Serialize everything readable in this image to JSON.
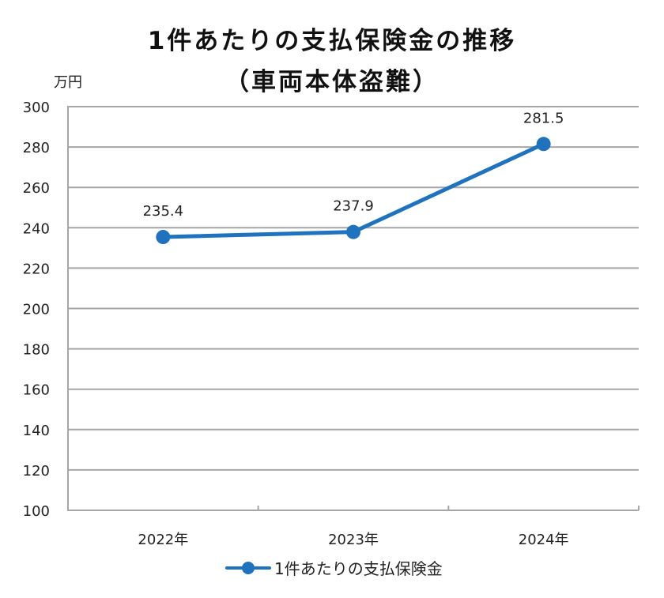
{
  "chart_data": {
    "type": "line",
    "title": "1件あたりの支払保険金の推移",
    "subtitle": "（車両本体盗難）",
    "xlabel": "",
    "ylabel": "万円",
    "categories": [
      "2022年",
      "2023年",
      "2024年"
    ],
    "series": [
      {
        "name": "1件あたりの支払保険金",
        "values": [
          235.4,
          237.9,
          281.5
        ],
        "color": "#1f72bd"
      }
    ],
    "data_labels": [
      "235.4",
      "237.9",
      "281.5"
    ],
    "ylim": [
      100,
      300
    ],
    "yticks": [
      100,
      120,
      140,
      160,
      180,
      200,
      220,
      240,
      260,
      280,
      300
    ],
    "grid": true,
    "legend_position": "bottom"
  },
  "header": {
    "title_line1": "1件あたりの支払保険金の推移",
    "title_line2": "（車両本体盗難）"
  },
  "axis": {
    "y_unit": "万円"
  },
  "legend": {
    "label": "1件あたりの支払保険金"
  }
}
